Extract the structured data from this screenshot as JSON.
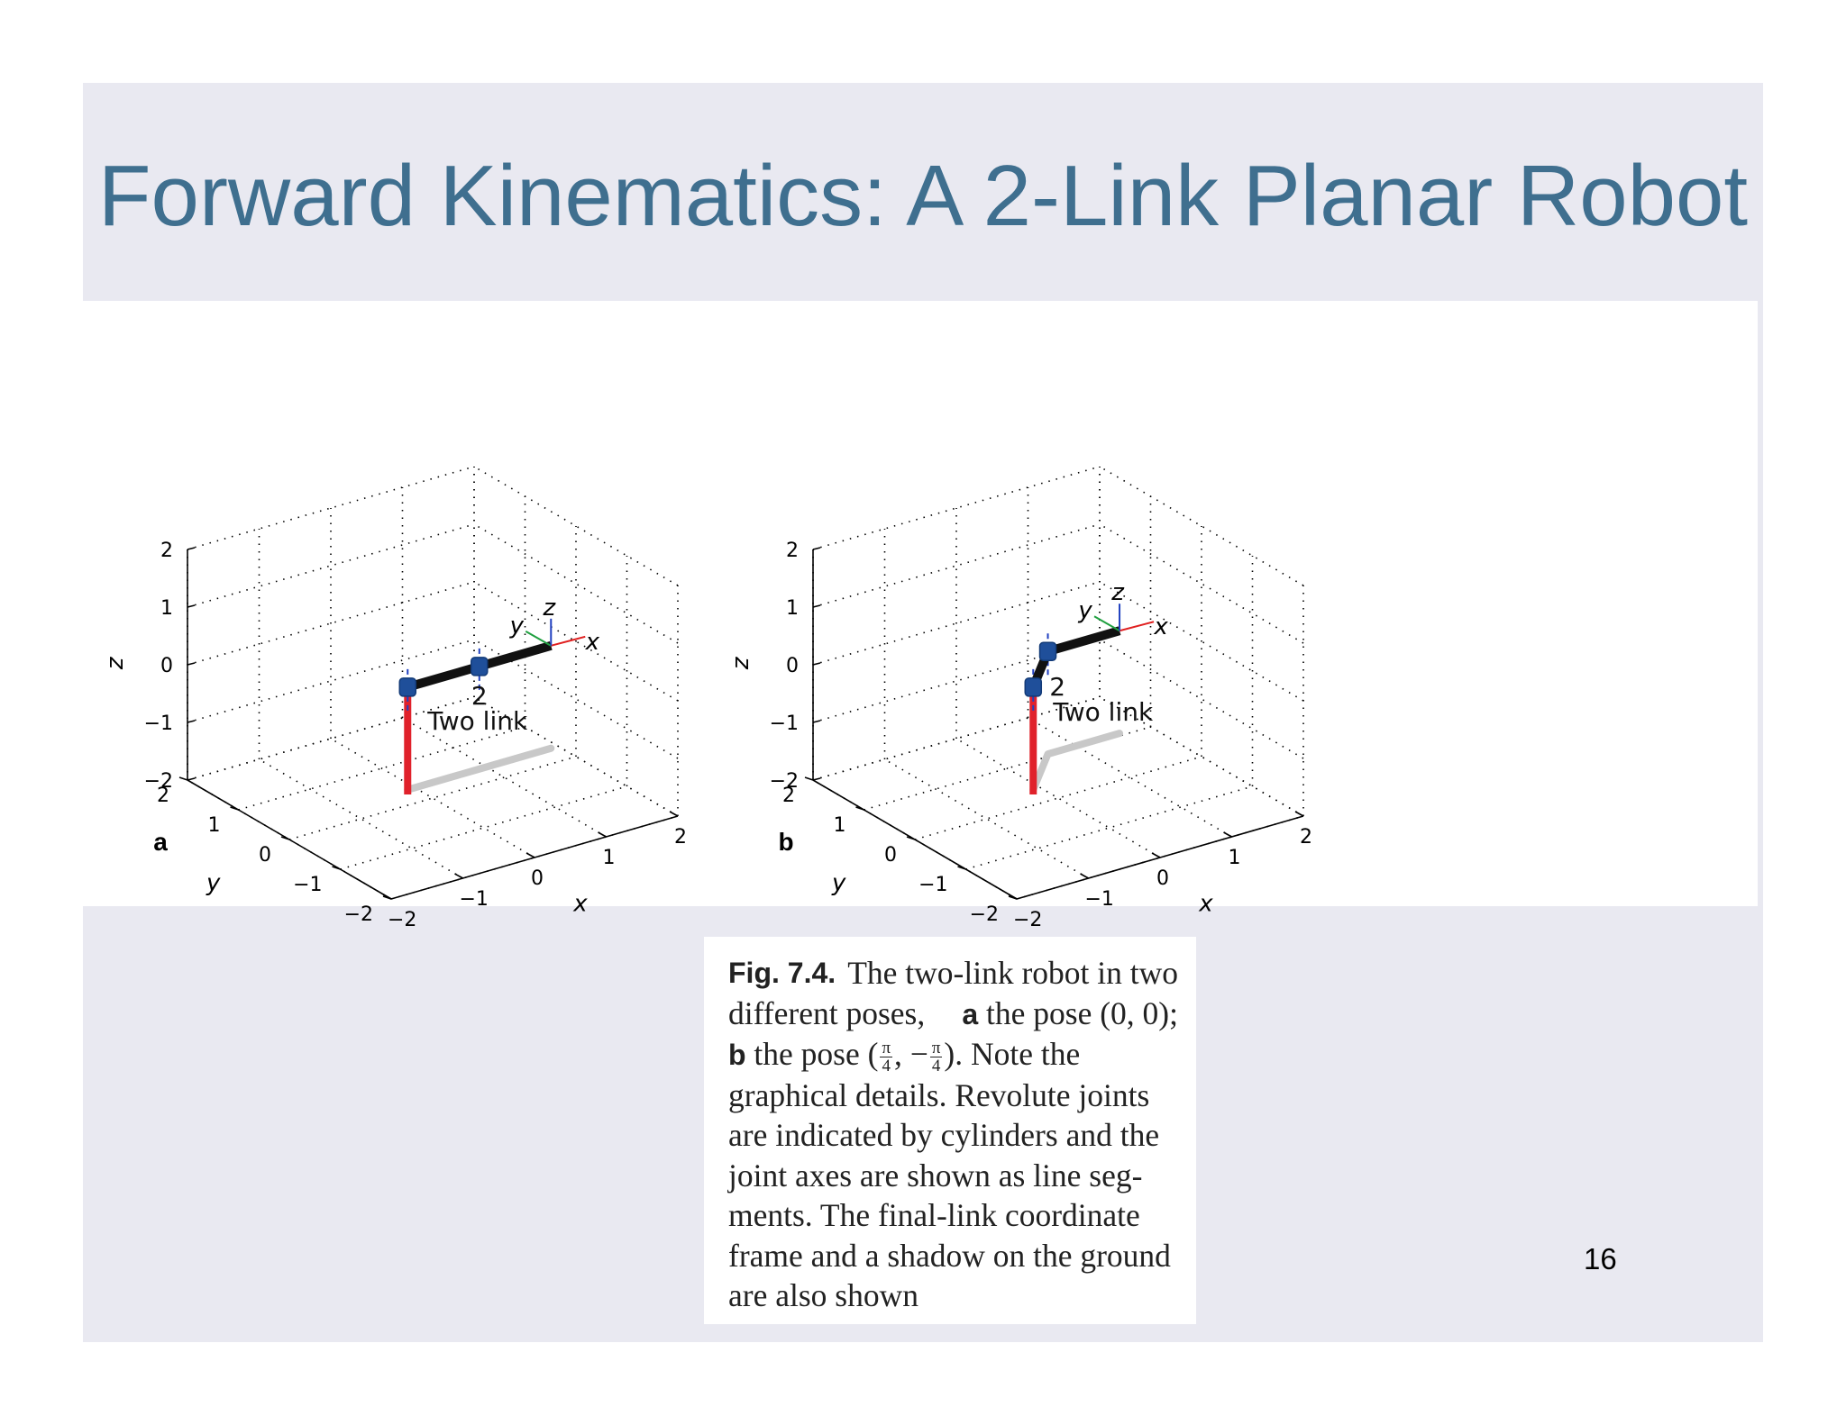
{
  "slide": {
    "title": "Forward Kinematics: A 2-Link Planar Robot",
    "page_number": "16",
    "colors": {
      "background": "#e9e9f1",
      "title": "#3f6f8f",
      "link1": "#e0212b",
      "link2": "#111111",
      "joint": "#1f4f9a",
      "shadow": "#c8c8c8"
    }
  },
  "figure": {
    "panels": [
      {
        "label": "a",
        "annotation_text": "Two link",
        "annotation_joint": "2",
        "pose": "(0, 0)",
        "axes": {
          "x_label": "x",
          "y_label": "y",
          "z_label": "z",
          "x_ticks": [
            "−2",
            "−1",
            "0",
            "1",
            "2"
          ],
          "y_ticks": [
            "2",
            "1",
            "0",
            "−1",
            "−2"
          ],
          "z_ticks": [
            "2",
            "1",
            "0",
            "−1",
            "−2"
          ],
          "grid": "dotted"
        },
        "frame_labels": [
          "y",
          "z",
          "x"
        ]
      },
      {
        "label": "b",
        "annotation_text": "Two link",
        "annotation_joint": "2",
        "pose": "(π/4, −π/4)",
        "axes": {
          "x_label": "x",
          "y_label": "y",
          "z_label": "z",
          "x_ticks": [
            "−2",
            "−1",
            "0",
            "1",
            "2"
          ],
          "y_ticks": [
            "2",
            "1",
            "0",
            "−1",
            "−2"
          ],
          "z_ticks": [
            "2",
            "1",
            "0",
            "−1",
            "−2"
          ],
          "grid": "dotted"
        },
        "frame_labels": [
          "y",
          "z",
          "x"
        ]
      }
    ]
  },
  "caption": {
    "fig_label": "Fig. 7.4.",
    "l1": "The two-link robot in two",
    "l2a": "different poses,",
    "l2b": "a",
    "l2c": "the pose (0, 0);",
    "l3a": "b",
    "l3b": "the pose (",
    "frac_num": "π",
    "frac_den": "4",
    "l3c": ", −",
    "l3d": "). Note the",
    "l4": "graphical details. Revolute joints",
    "l5": "are indicated by cylinders and the",
    "l6": "joint axes are shown as line seg-",
    "l7": "ments. The final-link coordinate",
    "l8": "frame and a shadow on the ground",
    "l9": "are also shown"
  }
}
